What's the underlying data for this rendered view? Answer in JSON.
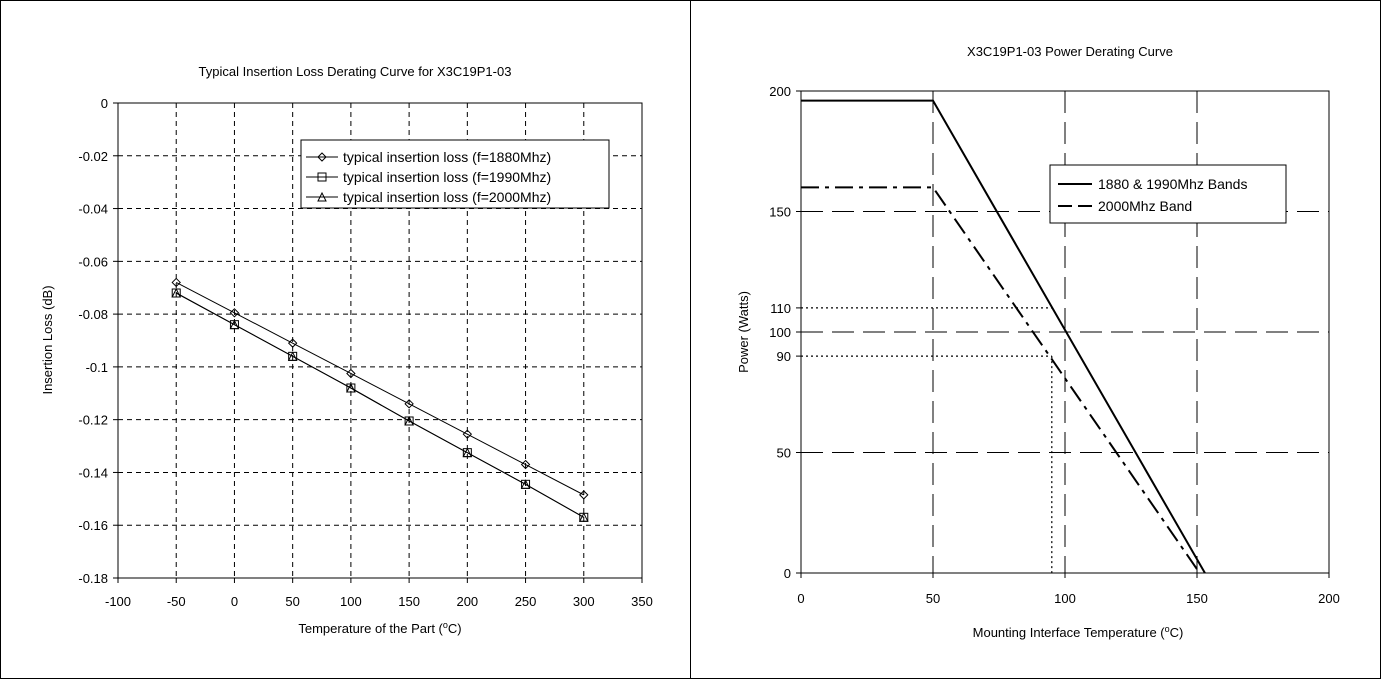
{
  "chart_data": [
    {
      "type": "line",
      "title": "Typical Insertion Loss Derating Curve for X3C19P1-03",
      "xlabel_main": "Temperature of the Part (",
      "xlabel_sup": "o",
      "xlabel_end": "C)",
      "ylabel": "Insertion Loss (dB)",
      "xlim": [
        -100,
        350
      ],
      "ylim": [
        -0.18,
        0
      ],
      "xticks": [
        -100,
        -50,
        0,
        50,
        100,
        150,
        200,
        250,
        300,
        350
      ],
      "xtick_labels": [
        "-100",
        "-50",
        "0",
        "50",
        "100",
        "150",
        "200",
        "250",
        "300",
        "350"
      ],
      "yticks": [
        0,
        -0.02,
        -0.04,
        -0.06,
        -0.08,
        -0.1,
        -0.12,
        -0.14,
        -0.16,
        -0.18
      ],
      "ytick_labels": [
        "0",
        "-0.02",
        "-0.04",
        "-0.06",
        "-0.08",
        "-0.1",
        "-0.12",
        "-0.14",
        "-0.16",
        "-0.18"
      ],
      "grid": true,
      "legend_position": "top-right",
      "x": [
        -50,
        0,
        50,
        100,
        150,
        200,
        250,
        300
      ],
      "series": [
        {
          "name": "typical insertion loss (f=1880Mhz)",
          "marker": "diamond",
          "values": [
            -0.068,
            -0.0795,
            -0.091,
            -0.1025,
            -0.114,
            -0.1255,
            -0.137,
            -0.1485
          ]
        },
        {
          "name": "typical insertion loss (f=1990Mhz)",
          "marker": "square",
          "values": [
            -0.072,
            -0.084,
            -0.096,
            -0.108,
            -0.1205,
            -0.1325,
            -0.1445,
            -0.157
          ]
        },
        {
          "name": "typical insertion loss (f=2000Mhz)",
          "marker": "triangle",
          "values": [
            -0.072,
            -0.084,
            -0.096,
            -0.108,
            -0.1205,
            -0.1325,
            -0.1445,
            -0.157
          ]
        }
      ]
    },
    {
      "type": "line",
      "title": "X3C19P1-03 Power Derating Curve",
      "xlabel_main": "Mounting Interface Temperature (",
      "xlabel_sup": "o",
      "xlabel_end": "C)",
      "ylabel": "Power (Watts)",
      "xlim": [
        0,
        200
      ],
      "ylim": [
        0,
        200
      ],
      "xticks": [
        0,
        50,
        100,
        150,
        200
      ],
      "xtick_labels": [
        "0",
        "50",
        "100",
        "150",
        "200"
      ],
      "yticks": [
        0,
        50,
        90,
        100,
        110,
        150,
        200
      ],
      "ytick_labels": [
        "0",
        "50",
        "90",
        "100",
        "110",
        "150",
        "200"
      ],
      "grid": true,
      "legend_position": "top-right",
      "series": [
        {
          "name": "1880 & 1990Mhz Bands",
          "style": "solid",
          "x": [
            0,
            50,
            153
          ],
          "values": [
            196,
            196,
            0
          ]
        },
        {
          "name": "2000Mhz Band",
          "style": "dash-dot",
          "x": [
            0,
            50,
            151
          ],
          "values": [
            160,
            160,
            0
          ]
        }
      ],
      "reference_lines": [
        {
          "x": [
            0,
            96
          ],
          "values": [
            110,
            110
          ]
        },
        {
          "x": [
            0,
            95
          ],
          "values": [
            90,
            90
          ]
        },
        {
          "x": [
            95,
            95
          ],
          "values": [
            90,
            0
          ]
        }
      ]
    }
  ]
}
